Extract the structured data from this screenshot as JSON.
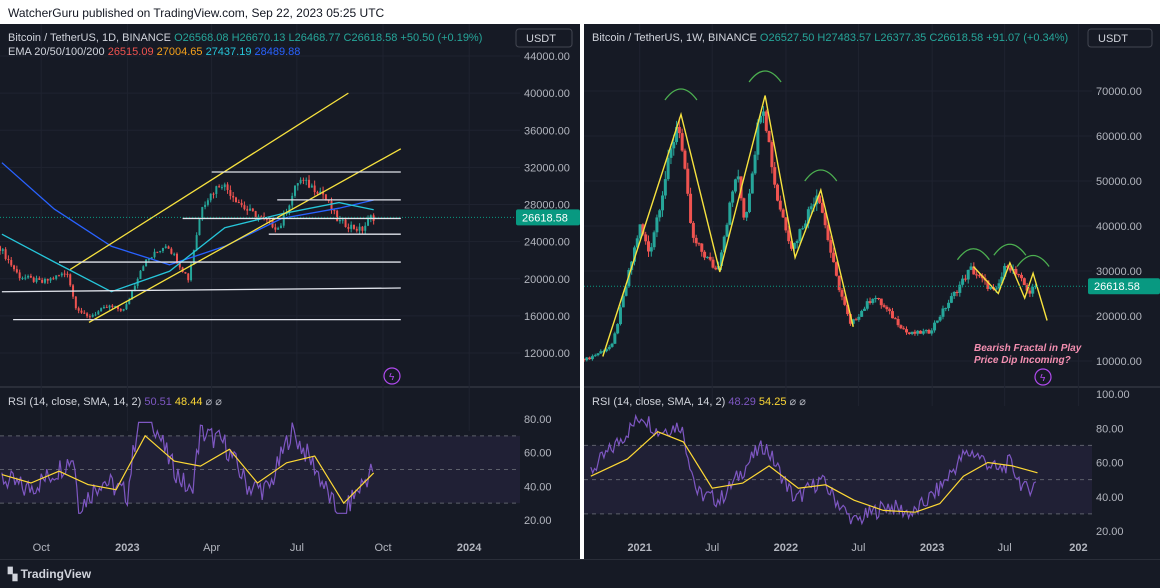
{
  "publisher_line": "WatcherGuru published on TradingView.com, Sep 22, 2023 05:25 UTC",
  "footer_brand": "TradingView",
  "colors": {
    "up": "#26a69a",
    "down": "#ef5350",
    "ema20": "#ef5350",
    "ema50": "#f7a21b",
    "ema100": "#26c6da",
    "ema200": "#2962ff",
    "rsi": "#7e57c2",
    "rsi_sma": "#fdd835",
    "trendline": "#f7e23e",
    "level": "#e0e3eb",
    "price_badge": "#089981",
    "arc": "#4caf50",
    "fractal_text": "#f48fb1",
    "bg": "#161a25"
  },
  "chart_data": [
    {
      "id": "left-price",
      "type": "candlestick",
      "symbol_line": "Bitcoin / TetherUS, 1D, BINANCE",
      "ohlc": {
        "o": "O26568.08",
        "h": "H26670.13",
        "l": "L26468.77",
        "c": "C26618.58",
        "chg": "+50.50 (+0.19%)"
      },
      "ema_label": "EMA 20/50/100/200",
      "ema_values": [
        "26515.09",
        "27004.65",
        "27437.19",
        "28489.88"
      ],
      "currency": "USDT",
      "y_ticks": [
        44000,
        40000,
        36000,
        32000,
        28000,
        24000,
        20000,
        16000,
        12000
      ],
      "y_tick_labels": [
        "44000.00",
        "40000.00",
        "36000.00",
        "32000.00",
        "28000.00",
        "24000.00",
        "20000.00",
        "16000.00",
        "12000.00"
      ],
      "last_price": 26618.58,
      "last_price_label": "26618.58",
      "x_ticks": [
        "Oct",
        "2023",
        "Apr",
        "Jul",
        "Oct",
        "2024"
      ],
      "series": [
        {
          "name": "price",
          "x": [
            "2022-08-20",
            "2022-09-10",
            "2022-10-05",
            "2022-11-01",
            "2022-11-09",
            "2022-11-21",
            "2022-12-15",
            "2023-01-01",
            "2023-01-20",
            "2023-02-15",
            "2023-03-10",
            "2023-03-25",
            "2023-04-14",
            "2023-05-10",
            "2023-06-15",
            "2023-07-06",
            "2023-07-31",
            "2023-08-17",
            "2023-09-11",
            "2023-09-21"
          ],
          "values": [
            23500,
            20300,
            19600,
            20700,
            17200,
            15800,
            17000,
            16600,
            21500,
            23800,
            20000,
            28000,
            30400,
            27500,
            25400,
            30700,
            29300,
            26200,
            25200,
            26618
          ]
        },
        {
          "name": "EMA 200",
          "x": [
            "2022-08-20",
            "2022-10-15",
            "2022-12-15",
            "2023-02-15",
            "2023-04-15",
            "2023-06-15",
            "2023-08-15",
            "2023-09-21"
          ],
          "values": [
            32500,
            27500,
            23500,
            21500,
            23500,
            26500,
            27600,
            28489
          ]
        },
        {
          "name": "EMA 100",
          "x": [
            "2022-08-20",
            "2022-10-15",
            "2022-12-15",
            "2023-02-15",
            "2023-04-15",
            "2023-06-15",
            "2023-08-15",
            "2023-09-21"
          ],
          "values": [
            24800,
            21800,
            18600,
            20800,
            25500,
            27000,
            28200,
            27437
          ]
        }
      ],
      "lines": [
        {
          "kind": "channel",
          "from": [
            "2022-11-01",
            21000
          ],
          "to": [
            "2023-08-25",
            40000
          ]
        },
        {
          "kind": "channel",
          "from": [
            "2022-11-21",
            15300
          ],
          "to": [
            "2023-10-20",
            34000
          ]
        },
        {
          "kind": "level",
          "from": [
            "2023-04-01",
            31500
          ],
          "to": [
            "2023-10-20",
            31500
          ]
        },
        {
          "kind": "level",
          "from": [
            "2023-06-10",
            28500
          ],
          "to": [
            "2023-10-20",
            28500
          ]
        },
        {
          "kind": "level",
          "from": [
            "2023-03-01",
            26500
          ],
          "to": [
            "2023-10-20",
            26500
          ]
        },
        {
          "kind": "level",
          "from": [
            "2023-06-01",
            24800
          ],
          "to": [
            "2023-10-20",
            24800
          ]
        },
        {
          "kind": "level",
          "from": [
            "2022-10-20",
            21800
          ],
          "to": [
            "2023-10-20",
            21800
          ]
        },
        {
          "kind": "level",
          "from": [
            "2022-08-20",
            18600
          ],
          "to": [
            "2023-10-20",
            19000
          ]
        },
        {
          "kind": "level",
          "from": [
            "2022-09-01",
            15600
          ],
          "to": [
            "2023-10-20",
            15600
          ]
        }
      ]
    },
    {
      "id": "left-rsi",
      "type": "line",
      "label": "RSI (14, close, SMA, 14, 2)",
      "values_text": [
        "50.51",
        "48.44"
      ],
      "y_ticks": [
        80,
        60,
        40,
        20
      ],
      "y_tick_labels": [
        "80.00",
        "60.00",
        "40.00",
        "20.00"
      ],
      "bands": [
        70,
        50,
        30
      ],
      "x_ticks": [
        "Oct",
        "2023",
        "Apr",
        "Jul",
        "Oct",
        "2024"
      ],
      "series": [
        {
          "name": "RSI",
          "x": [
            "2022-08-20",
            "2022-09-15",
            "2022-10-10",
            "2022-11-05",
            "2022-11-10",
            "2022-12-05",
            "2023-01-01",
            "2023-01-12",
            "2023-01-22",
            "2023-02-15",
            "2023-03-10",
            "2023-03-20",
            "2023-04-14",
            "2023-05-10",
            "2023-06-01",
            "2023-06-25",
            "2023-07-20",
            "2023-08-18",
            "2023-08-28",
            "2023-09-21"
          ],
          "values": [
            45,
            38,
            46,
            58,
            27,
            44,
            35,
            78,
            88,
            55,
            35,
            72,
            66,
            40,
            38,
            73,
            52,
            18,
            32,
            51
          ]
        },
        {
          "name": "RSI SMA",
          "x": [
            "2022-08-20",
            "2022-09-20",
            "2022-10-20",
            "2022-11-20",
            "2022-12-20",
            "2023-01-20",
            "2023-02-20",
            "2023-03-20",
            "2023-04-20",
            "2023-05-20",
            "2023-06-20",
            "2023-07-20",
            "2023-08-20",
            "2023-09-21"
          ],
          "values": [
            47,
            42,
            49,
            41,
            38,
            70,
            55,
            52,
            62,
            42,
            54,
            58,
            30,
            48
          ]
        }
      ]
    },
    {
      "id": "right-price",
      "type": "candlestick",
      "symbol_line": "Bitcoin / TetherUS, 1W, BINANCE",
      "ohlc": {
        "o": "O26527.50",
        "h": "H27483.57",
        "l": "L26377.35",
        "c": "C26618.58",
        "chg": "+91.07 (+0.34%)"
      },
      "currency": "USDT",
      "y_ticks": [
        70000,
        60000,
        50000,
        40000,
        30000,
        20000,
        10000
      ],
      "y_tick_labels": [
        "70000.00",
        "60000.00",
        "50000.00",
        "40000.00",
        "30000.00",
        "20000.00",
        "10000.00"
      ],
      "last_price": 26618.58,
      "last_price_label": "26618.58",
      "x_ticks": [
        "2021",
        "Jul",
        "2022",
        "Jul",
        "2023",
        "Jul",
        "202"
      ],
      "annotation": [
        "Bearish Fractal in Play",
        "Price Dip Incoming?"
      ],
      "series": [
        {
          "name": "price",
          "x": [
            "2020-09-01",
            "2020-11-01",
            "2021-01-08",
            "2021-02-01",
            "2021-04-14",
            "2021-05-20",
            "2021-07-20",
            "2021-09-07",
            "2021-09-28",
            "2021-11-10",
            "2021-12-15",
            "2022-01-24",
            "2022-03-29",
            "2022-05-12",
            "2022-06-18",
            "2022-08-15",
            "2022-11-09",
            "2023-01-01",
            "2023-04-14",
            "2023-06-15",
            "2023-07-14",
            "2023-09-11",
            "2023-09-21"
          ],
          "values": [
            10500,
            13500,
            40000,
            34000,
            64000,
            37000,
            30000,
            52000,
            41000,
            69000,
            47000,
            35000,
            48000,
            29000,
            18000,
            24500,
            16000,
            16500,
            30500,
            25000,
            31800,
            25000,
            26618
          ]
        },
        {
          "name": "fractal-path",
          "x": [
            "2020-10-01",
            "2021-04-14",
            "2021-07-20",
            "2021-11-10",
            "2022-01-24",
            "2022-03-29",
            "2022-06-18"
          ],
          "values": [
            11000,
            64800,
            29800,
            69000,
            33000,
            48000,
            17600
          ]
        },
        {
          "name": "fractal-projection",
          "x": [
            "2023-04-14",
            "2023-06-15",
            "2023-07-14",
            "2023-08-20",
            "2023-09-10",
            "2023-10-15"
          ],
          "values": [
            31000,
            25000,
            31800,
            24000,
            29500,
            19000
          ]
        }
      ]
    },
    {
      "id": "right-rsi",
      "type": "line",
      "label": "RSI (14, close, SMA, 14, 2)",
      "values_text": [
        "48.29",
        "54.25"
      ],
      "y_ticks": [
        100,
        80,
        60,
        40,
        20
      ],
      "y_tick_labels": [
        "100.00",
        "80.00",
        "60.00",
        "40.00",
        "20.00"
      ],
      "bands": [
        70,
        50,
        30
      ],
      "x_ticks": [
        "2021",
        "Jul",
        "2022",
        "Jul",
        "2023",
        "Jul",
        "202"
      ],
      "series": [
        {
          "name": "RSI",
          "x": [
            "2020-09-01",
            "2020-11-01",
            "2021-01-08",
            "2021-02-15",
            "2021-04-14",
            "2021-05-25",
            "2021-07-20",
            "2021-10-20",
            "2021-11-10",
            "2022-01-24",
            "2022-03-29",
            "2022-06-18",
            "2022-09-10",
            "2022-11-15",
            "2023-01-20",
            "2023-03-20",
            "2023-04-14",
            "2023-06-15",
            "2023-07-14",
            "2023-08-20",
            "2023-09-21"
          ],
          "values": [
            55,
            70,
            88,
            78,
            82,
            42,
            38,
            66,
            70,
            38,
            50,
            25,
            35,
            30,
            45,
            64,
            66,
            55,
            60,
            44,
            48
          ]
        },
        {
          "name": "RSI SMA",
          "x": [
            "2020-09-01",
            "2020-12-01",
            "2021-02-15",
            "2021-04-20",
            "2021-07-01",
            "2021-09-15",
            "2021-11-20",
            "2022-02-01",
            "2022-04-10",
            "2022-06-20",
            "2022-09-01",
            "2022-11-20",
            "2023-01-20",
            "2023-03-20",
            "2023-05-20",
            "2023-07-20",
            "2023-09-21"
          ],
          "values": [
            52,
            62,
            78,
            72,
            45,
            48,
            58,
            45,
            47,
            38,
            32,
            31,
            36,
            52,
            60,
            58,
            54
          ]
        }
      ]
    }
  ]
}
